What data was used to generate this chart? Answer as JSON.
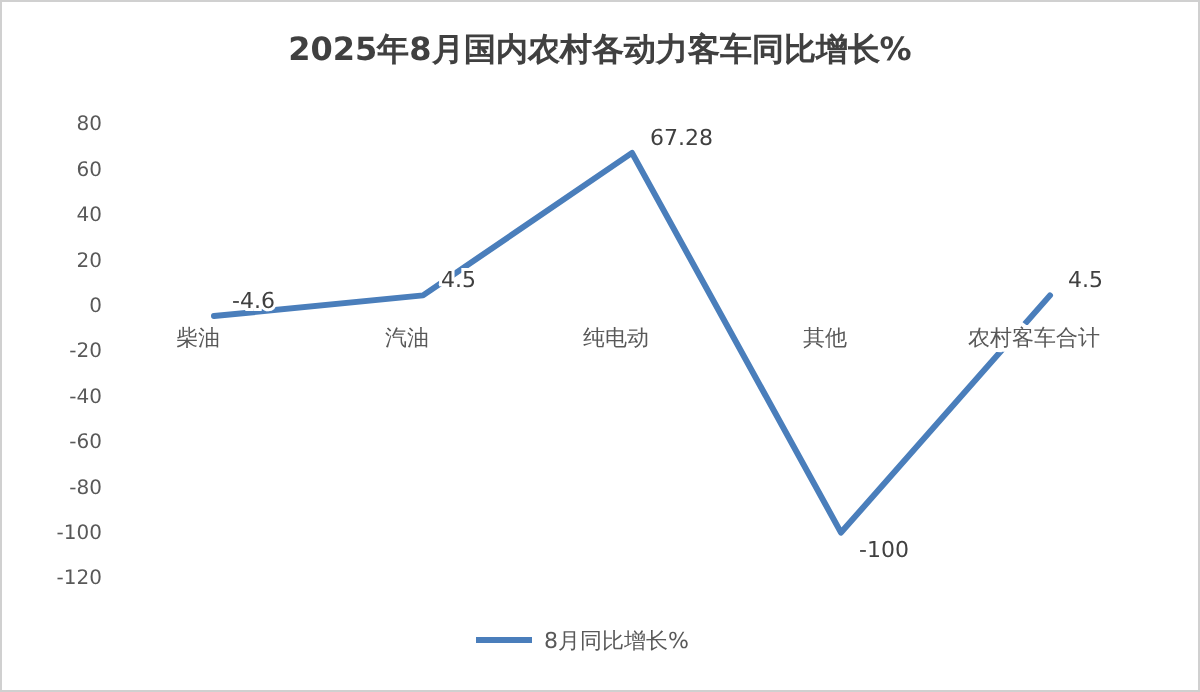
{
  "chart_data": {
    "type": "line",
    "title": "2025年8月国内农村各动力客车同比增长%",
    "categories": [
      "柴油",
      "汽油",
      "纯电动",
      "其他",
      "农村客车合计"
    ],
    "series": [
      {
        "name": "8月同比增长%",
        "color": "#4a7ebb",
        "values": [
          -4.6,
          4.5,
          67.28,
          -100,
          4.5
        ]
      }
    ],
    "ylim": [
      -120,
      80
    ],
    "yticks": [
      -120,
      -100,
      -80,
      -60,
      -40,
      -20,
      0,
      20,
      40,
      60,
      80
    ],
    "grid": false,
    "legend": "bottom",
    "data_labels": true,
    "marker": "none",
    "line_style": "solid"
  }
}
